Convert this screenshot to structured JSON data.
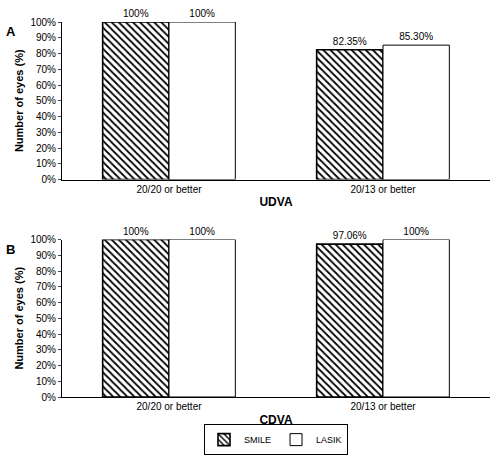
{
  "chart_data": [
    {
      "type": "bar",
      "title": "A",
      "categories": [
        "20/20 or better",
        "20/13 or better"
      ],
      "x_label": "UDVA",
      "y_label": "Number of eyes (%)",
      "series": [
        {
          "name": "SMILE",
          "color": "#ffffff",
          "marker": "hatched",
          "values": [
            100,
            82.35
          ],
          "value_labels": [
            "100%",
            "82.35%"
          ]
        },
        {
          "name": "LASIK",
          "color": "#ffffff",
          "marker": "plain",
          "values": [
            100,
            85.3
          ],
          "value_labels": [
            "100%",
            "85.30%"
          ]
        }
      ],
      "ylim": [
        0,
        100
      ],
      "yticks": [
        {
          "value": 0,
          "label": "0%"
        },
        {
          "value": 10,
          "label": "10%"
        },
        {
          "value": 20,
          "label": "20%"
        },
        {
          "value": 30,
          "label": "30%"
        },
        {
          "value": 40,
          "label": "40%"
        },
        {
          "value": 50,
          "label": "50%"
        },
        {
          "value": 60,
          "label": "60%"
        },
        {
          "value": 70,
          "label": "70%"
        },
        {
          "value": 80,
          "label": "80%"
        },
        {
          "value": 90,
          "label": "90%"
        },
        {
          "value": 100,
          "label": "100%"
        }
      ],
      "grid": false,
      "data_labels": true
    },
    {
      "type": "bar",
      "title": "B",
      "categories": [
        "20/20 or better",
        "20/13 or better"
      ],
      "x_label": "CDVA",
      "y_label": "Number of eyes (%)",
      "series": [
        {
          "name": "SMILE",
          "color": "#ffffff",
          "marker": "hatched",
          "values": [
            100,
            97.06
          ],
          "value_labels": [
            "100%",
            "97.06%"
          ]
        },
        {
          "name": "LASIK",
          "color": "#ffffff",
          "marker": "plain",
          "values": [
            100,
            100
          ],
          "value_labels": [
            "100%",
            "100%"
          ]
        }
      ],
      "ylim": [
        0,
        100
      ],
      "yticks": [
        {
          "value": 0,
          "label": "0%"
        },
        {
          "value": 10,
          "label": "10%"
        },
        {
          "value": 20,
          "label": "20%"
        },
        {
          "value": 30,
          "label": "30%"
        },
        {
          "value": 40,
          "label": "40%"
        },
        {
          "value": 50,
          "label": "50%"
        },
        {
          "value": 60,
          "label": "60%"
        },
        {
          "value": 70,
          "label": "70%"
        },
        {
          "value": 80,
          "label": "80%"
        },
        {
          "value": 90,
          "label": "90%"
        },
        {
          "value": 100,
          "label": "100%"
        }
      ],
      "grid": false,
      "data_labels": true,
      "legend": "bottom"
    }
  ]
}
